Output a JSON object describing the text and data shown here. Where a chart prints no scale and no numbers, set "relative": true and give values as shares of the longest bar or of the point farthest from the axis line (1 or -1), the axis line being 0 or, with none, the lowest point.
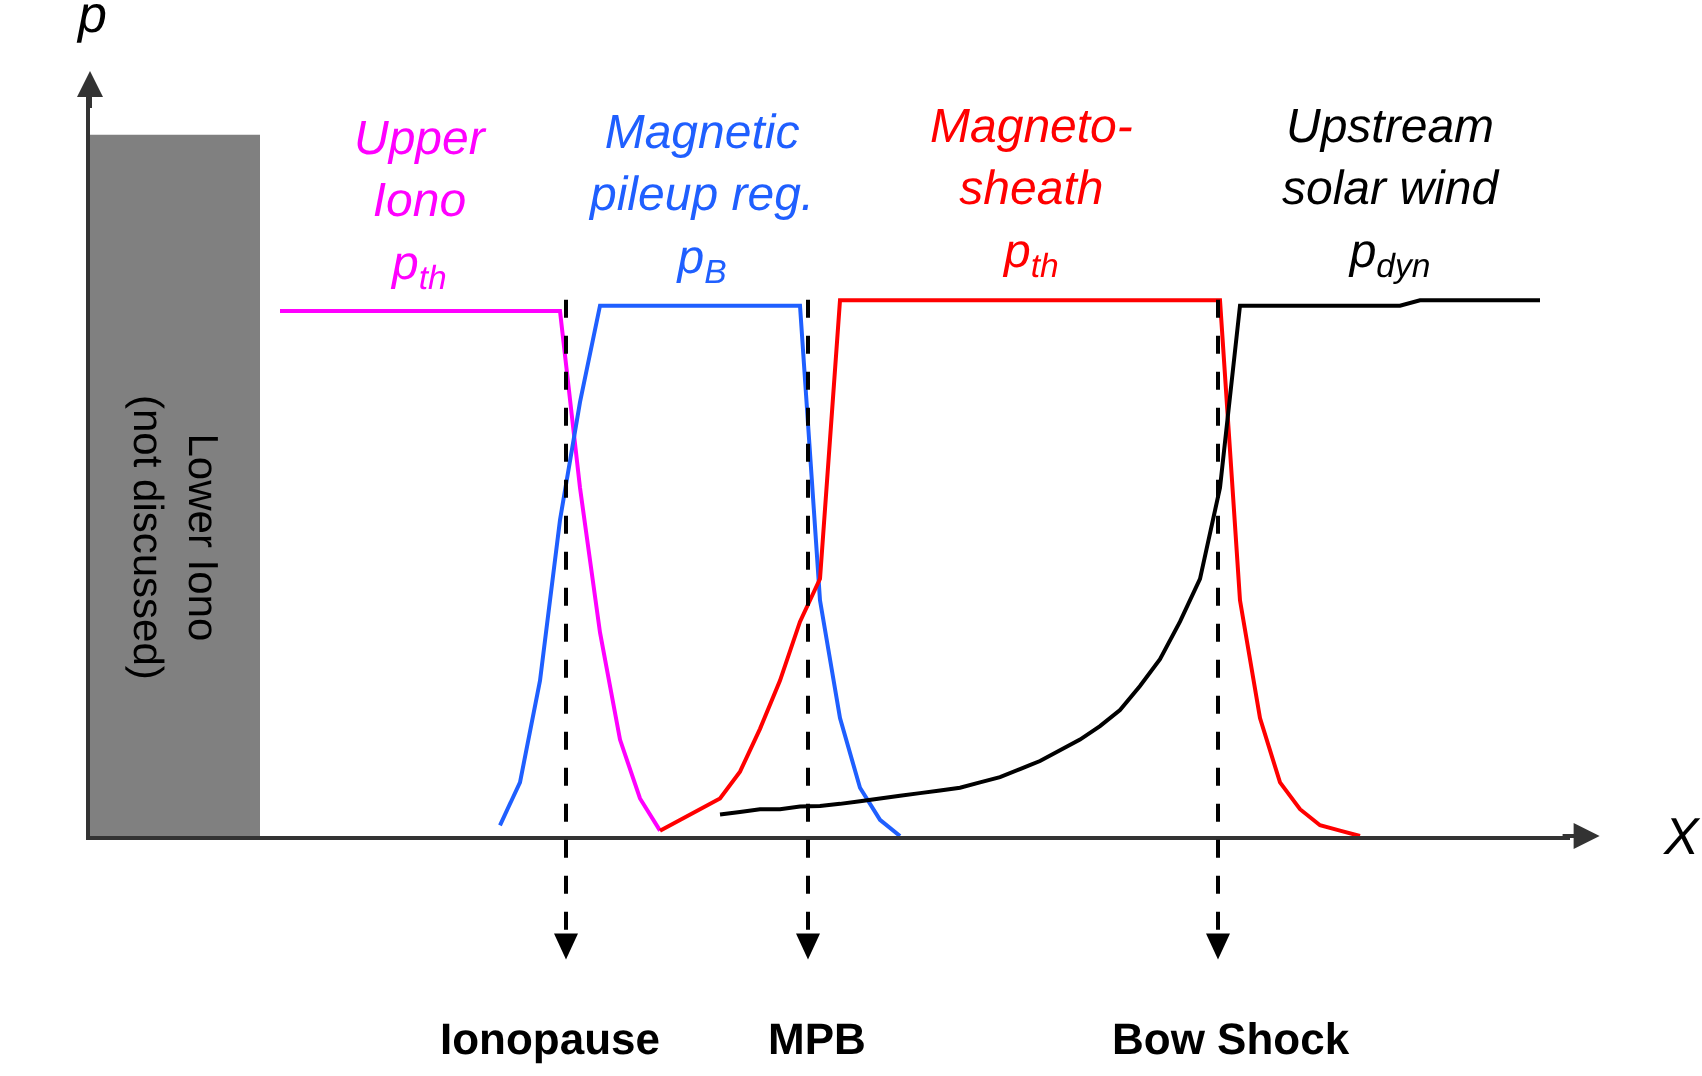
{
  "chart_data": {
    "type": "line",
    "relative": true,
    "xlabel": "X",
    "ylabel": "p",
    "legend": false,
    "categories": [
      null,
      null,
      null,
      null,
      null,
      null,
      null,
      null,
      null,
      null,
      null,
      null,
      null,
      null,
      null,
      null,
      null,
      null,
      null,
      null,
      null,
      null,
      null,
      null,
      null,
      null,
      null,
      null,
      null,
      null,
      null,
      null,
      null,
      null,
      null,
      null,
      null,
      null,
      null,
      null,
      null,
      null,
      null,
      null,
      null,
      null,
      null,
      null,
      null,
      null,
      null,
      null,
      null,
      null,
      null,
      null,
      null,
      null,
      null,
      null,
      null,
      null,
      null,
      null,
      null,
      null,
      null,
      null,
      null,
      null,
      null,
      null,
      null,
      null
    ],
    "series": [
      {
        "name": "Upper\nIono\np$_{th}$",
        "color": "#ff00ff",
        "values": [
          null,
          null,
          null,
          null,
          null,
          null,
          null,
          null,
          null,
          0.98,
          0.98,
          0.98,
          0.98,
          0.98,
          0.98,
          0.98,
          0.98,
          0.98,
          0.98,
          0.98,
          0.98,
          0.98,
          0.98,
          0.98,
          0.65,
          0.38,
          0.18,
          0.07,
          0.01,
          null,
          null,
          null,
          null,
          null,
          null,
          null,
          null,
          null,
          null,
          null,
          null,
          null,
          null,
          null,
          null,
          null,
          null,
          null,
          null,
          null,
          null,
          null,
          null,
          null,
          null,
          null,
          null,
          null,
          null,
          null,
          null,
          null,
          null,
          null,
          null,
          null,
          null,
          null,
          null,
          null,
          null,
          null,
          null,
          null
        ]
      },
      {
        "name": "Magnetic\npileup reg.\np$_{B}$",
        "color": "#1f5fff",
        "values": [
          null,
          null,
          null,
          null,
          null,
          null,
          null,
          null,
          null,
          null,
          null,
          null,
          null,
          null,
          null,
          null,
          null,
          null,
          null,
          null,
          0.02,
          0.1,
          0.29,
          0.59,
          0.81,
          0.99,
          0.99,
          0.99,
          0.99,
          0.99,
          0.99,
          0.99,
          0.99,
          0.99,
          0.99,
          0.99,
          0.44,
          0.22,
          0.09,
          0.03,
          0,
          null,
          null,
          null,
          null,
          null,
          null,
          null,
          null,
          null,
          null,
          null,
          null,
          null,
          null,
          null,
          null,
          null,
          null,
          null,
          null,
          null,
          null,
          null,
          null,
          null,
          null,
          null,
          null,
          null,
          null,
          null,
          null,
          null
        ]
      },
      {
        "name": "Magneto-\nsheath\np$_{th}$",
        "color": "#ff0000",
        "values": [
          null,
          null,
          null,
          null,
          null,
          null,
          null,
          null,
          null,
          null,
          null,
          null,
          null,
          null,
          null,
          null,
          null,
          null,
          null,
          null,
          null,
          null,
          null,
          null,
          null,
          null,
          null,
          null,
          0.01,
          0.03,
          0.05,
          0.07,
          0.12,
          0.2,
          0.29,
          0.4,
          0.48,
          1,
          1,
          1,
          1,
          1,
          1,
          1,
          1,
          1,
          1,
          1,
          1,
          1,
          1,
          1,
          1,
          1,
          1,
          1,
          1,
          0.44,
          0.22,
          0.1,
          0.05,
          0.02,
          0.01,
          0,
          null,
          null,
          null,
          null,
          null,
          null,
          null,
          null,
          null,
          null
        ]
      },
      {
        "name": "Upstream\nsolar wind\np$_{dyn}$",
        "color": "#000000",
        "values": [
          null,
          null,
          null,
          null,
          null,
          null,
          null,
          null,
          null,
          null,
          null,
          null,
          null,
          null,
          null,
          null,
          null,
          null,
          null,
          null,
          null,
          null,
          null,
          null,
          null,
          null,
          null,
          null,
          null,
          null,
          null,
          0.04,
          0.045,
          0.05,
          0.05,
          0.055,
          0.056,
          0.06,
          0.065,
          0.07,
          0.075,
          0.08,
          0.085,
          0.09,
          0.1,
          0.11,
          0.125,
          0.14,
          0.16,
          0.18,
          0.205,
          0.235,
          0.28,
          0.33,
          0.4,
          0.48,
          0.65,
          0.99,
          0.99,
          0.99,
          0.99,
          0.99,
          0.99,
          0.99,
          0.99,
          0.99,
          1,
          1,
          1,
          1,
          1,
          1,
          1,
          null
        ]
      }
    ],
    "annotations": [
      "Lower Iono\n(not discussed)",
      "Ionopause",
      "MPB",
      "Bow Shock"
    ]
  }
}
